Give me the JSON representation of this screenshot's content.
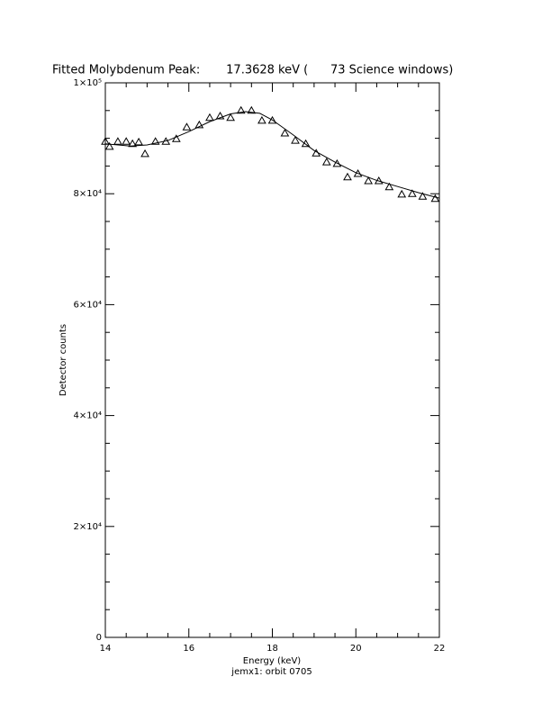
{
  "chart_data": {
    "type": "scatter",
    "title": "Fitted Molybdenum Peak:       17.3628 keV (      73 Science windows)",
    "x_label": "Energy (keV)",
    "y_label": "Detector counts",
    "subtitle": "jemx1: orbit 0705",
    "xlim": [
      14,
      22
    ],
    "xticks": [
      14,
      16,
      18,
      20,
      22
    ],
    "xminorticks": [
      14.5,
      15,
      15.5,
      16.5,
      17,
      17.5,
      18.5,
      19,
      19.5,
      20.5,
      21,
      21.5
    ],
    "ylim": [
      0,
      100000
    ],
    "yticks": [
      {
        "value": 0,
        "label": "0"
      },
      {
        "value": 20000,
        "label": "2×10⁴"
      },
      {
        "value": 40000,
        "label": "4×10⁴"
      },
      {
        "value": 60000,
        "label": "6×10⁴"
      },
      {
        "value": 80000,
        "label": "8×10⁴"
      },
      {
        "value": 100000,
        "label": "1×10⁵"
      }
    ],
    "yminorticks": [
      5000,
      10000,
      15000,
      25000,
      30000,
      35000,
      45000,
      50000,
      55000,
      65000,
      70000,
      75000,
      85000,
      90000,
      95000
    ],
    "color": "#000000",
    "points": {
      "x": [
        14.0,
        14.1,
        14.3,
        14.5,
        14.65,
        14.8,
        14.95,
        15.2,
        15.45,
        15.7,
        15.95,
        16.25,
        16.5,
        16.75,
        17.0,
        17.25,
        17.5,
        17.75,
        18.0,
        18.3,
        18.55,
        18.8,
        19.05,
        19.3,
        19.55,
        19.8,
        20.05,
        20.3,
        20.55,
        20.8,
        21.1,
        21.35,
        21.6,
        21.9
      ],
      "values": [
        89400,
        88500,
        89400,
        89400,
        89000,
        89300,
        87200,
        89400,
        89400,
        89900,
        92000,
        92400,
        93700,
        94000,
        93700,
        95000,
        95000,
        93200,
        93200,
        90900,
        89600,
        89000,
        87300,
        85700,
        85400,
        83000,
        83600,
        82300,
        82300,
        81200,
        79900,
        80000,
        79500,
        79100
      ]
    },
    "fit": {
      "x": [
        14.0,
        14.6,
        15.0,
        15.5,
        16.0,
        16.5,
        17.0,
        17.36,
        17.7,
        18.0,
        18.5,
        19.0,
        19.5,
        20.0,
        20.5,
        21.0,
        21.5,
        22.0
      ],
      "values": [
        89000,
        88600,
        88800,
        89600,
        91200,
        93000,
        94400,
        94800,
        94500,
        93300,
        90600,
        87800,
        85700,
        83800,
        82400,
        81300,
        80200,
        79200
      ]
    }
  }
}
